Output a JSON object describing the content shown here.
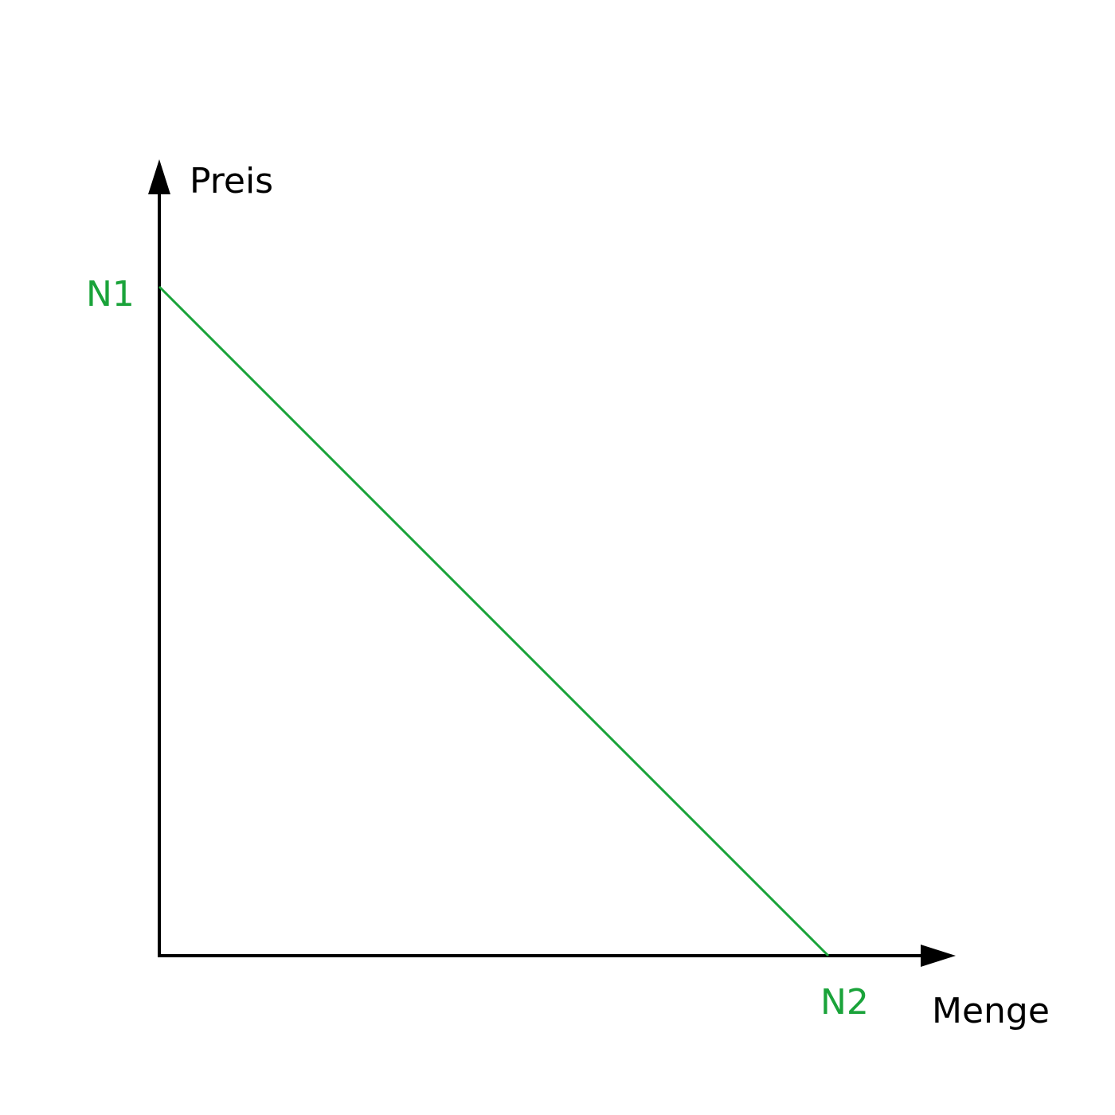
{
  "diagram": {
    "y_axis_label": "Preis",
    "x_axis_label": "Menge",
    "intercept_y_label": "N1",
    "intercept_x_label": "N2",
    "colors": {
      "axis": "#000000",
      "line": "#1aa33a",
      "axis_text": "#000000",
      "intercept_text": "#1aa33a"
    }
  }
}
